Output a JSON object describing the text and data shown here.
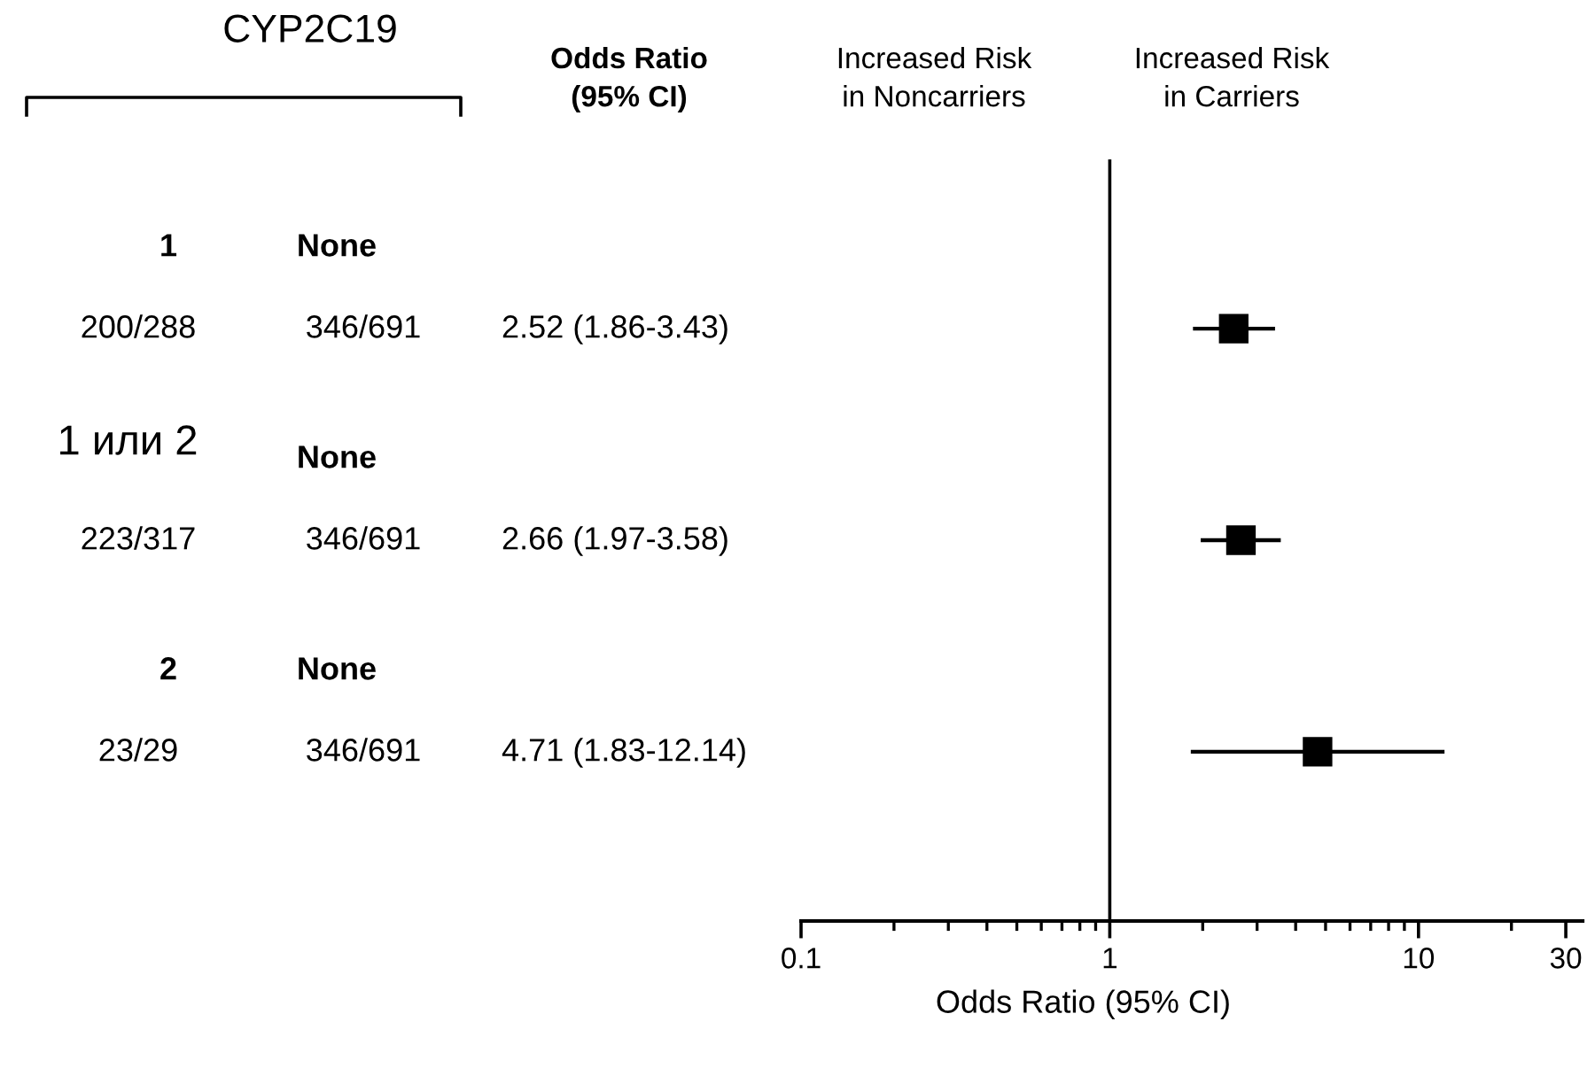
{
  "chart_data": {
    "type": "scatter",
    "orientation": "horizontal",
    "categories": [
      null,
      null,
      null
    ],
    "values": [
      2.52,
      2.66,
      4.71
    ],
    "errors": [
      [
        1.86,
        3.43
      ],
      [
        1.97,
        3.58
      ],
      [
        1.83,
        12.14
      ]
    ],
    "color": "#000000",
    "marker": "square",
    "log": "x",
    "xlim": [
      0.1,
      34
    ],
    "xticks": [
      0.1,
      1,
      10,
      30
    ],
    "xlabel": "Odds Ratio (95% CI)",
    "tick_labels": "x",
    "ref_lines": [
      {
        "axis": "x",
        "value": 1,
        "color": "#000000"
      }
    ],
    "annotations": [
      "CYP2C19",
      "Odds Ratio\n(95% CI)",
      "Increased Risk\nin Noncarriers",
      "Increased Risk\nin Carriers",
      "1",
      "None",
      "200/288",
      "346/691",
      "2.52 (1.86-3.43)",
      "1 или 2",
      "None",
      "223/317",
      "346/691",
      "2.66 (1.97-3.58)",
      "2",
      "None",
      "23/29",
      "346/691",
      "4.71 (1.83-12.14)"
    ]
  }
}
